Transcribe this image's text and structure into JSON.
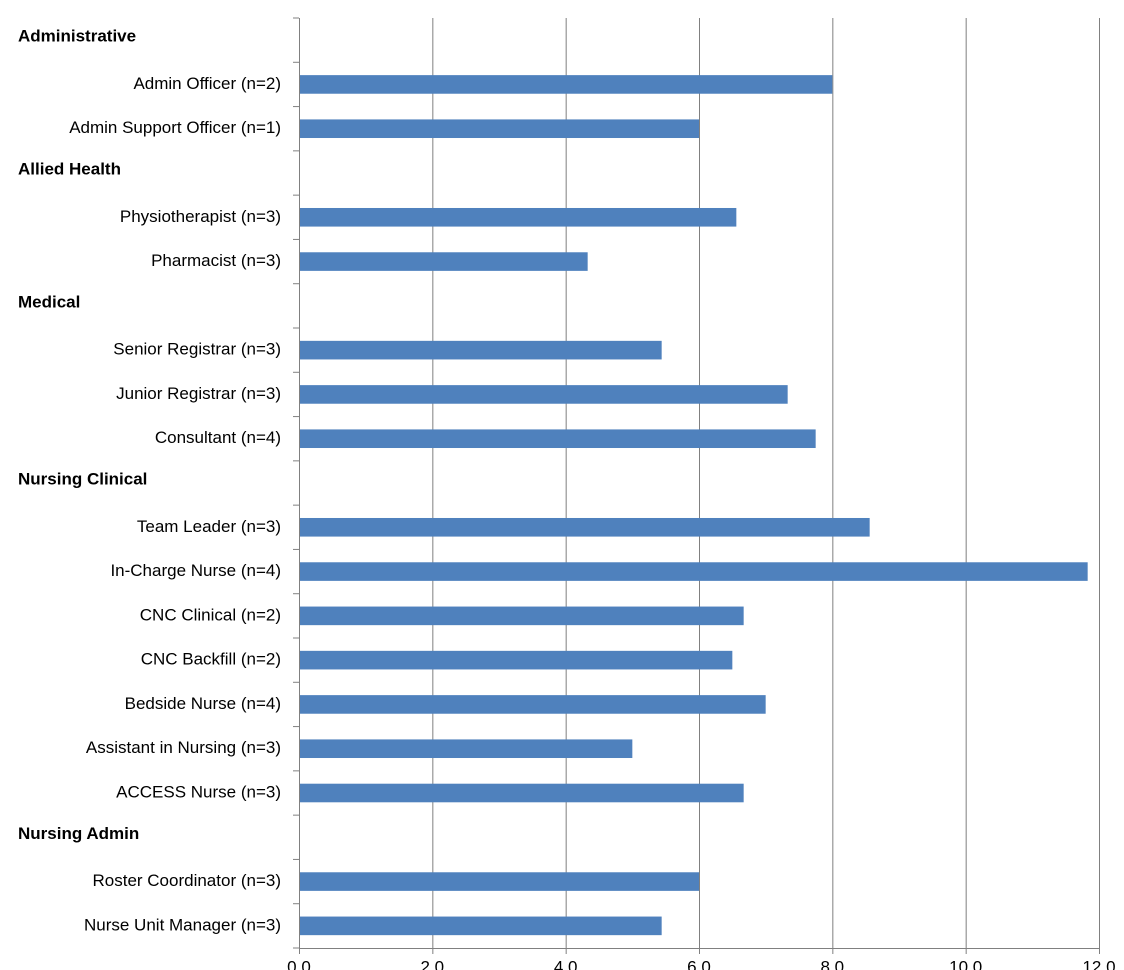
{
  "chart_data": {
    "type": "bar",
    "orientation": "horizontal",
    "bar_color": "#4f81bd",
    "xlim": [
      0,
      12
    ],
    "x_ticks": [
      "0.0",
      "2.0",
      "4.0",
      "6.0",
      "8.0",
      "10.0",
      "12.0"
    ],
    "grid": "vertical",
    "groups": [
      {
        "label": "Administrative",
        "items": [
          {
            "label": "Admin Officer (n=2)",
            "value": 8.0
          },
          {
            "label": "Admin Support Officer (n=1)",
            "value": 6.0
          }
        ]
      },
      {
        "label": "Allied Health",
        "items": [
          {
            "label": "Physiotherapist (n=3)",
            "value": 6.56
          },
          {
            "label": "Pharmacist (n=3)",
            "value": 4.33
          }
        ]
      },
      {
        "label": "Medical",
        "items": [
          {
            "label": "Senior Registrar (n=3)",
            "value": 5.44
          },
          {
            "label": "Junior Registrar (n=3)",
            "value": 7.33
          },
          {
            "label": "Consultant (n=4)",
            "value": 7.75
          }
        ]
      },
      {
        "label": "Nursing Clinical",
        "items": [
          {
            "label": "Team Leader (n=3)",
            "value": 8.56
          },
          {
            "label": "In-Charge Nurse (n=4)",
            "value": 11.83
          },
          {
            "label": "CNC Clinical (n=2)",
            "value": 6.67
          },
          {
            "label": "CNC Backfill (n=2)",
            "value": 6.5
          },
          {
            "label": "Bedside Nurse (n=4)",
            "value": 7.0
          },
          {
            "label": "Assistant in Nursing (n=3)",
            "value": 5.0
          },
          {
            "label": "ACCESS Nurse (n=3)",
            "value": 6.67
          }
        ]
      },
      {
        "label": "Nursing Admin",
        "items": [
          {
            "label": "Roster Coordinator (n=3)",
            "value": 6.0
          },
          {
            "label": "Nurse Unit Manager (n=3)",
            "value": 5.44
          }
        ]
      }
    ]
  }
}
